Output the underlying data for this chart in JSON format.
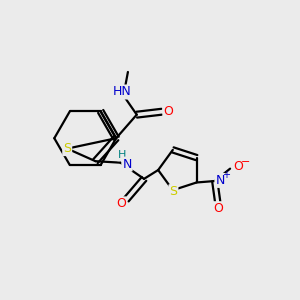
{
  "background_color": "#ebebeb",
  "atom_colors": {
    "C": "#000000",
    "N": "#0000cd",
    "O": "#ff0000",
    "S": "#cccc00",
    "H": "#008080"
  },
  "bond_color": "#000000",
  "bond_width": 1.6,
  "figsize": [
    3.0,
    3.0
  ],
  "dpi": 100
}
